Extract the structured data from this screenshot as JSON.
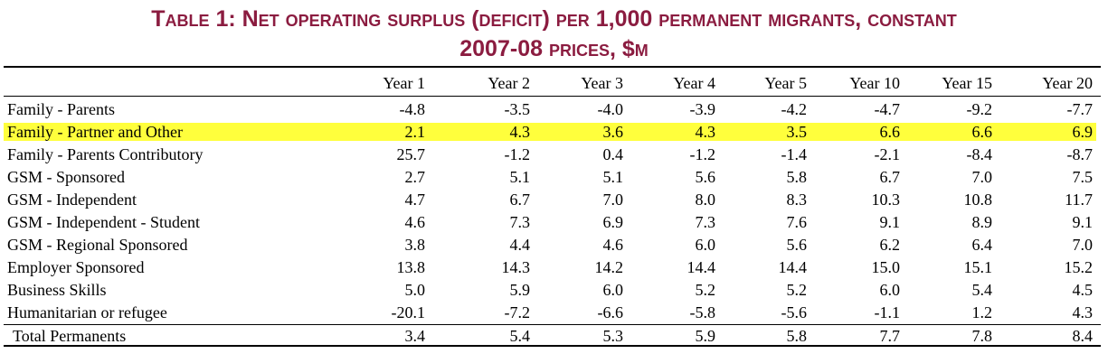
{
  "title": [
    "Table 1: Net operating surplus (deficit) per 1,000 permanent migrants, constant",
    "2007-08 prices, $m"
  ],
  "table": {
    "header": [
      "Year 1",
      "Year 2",
      "Year 3",
      "Year 4",
      "Year 5",
      "Year 10",
      "Year 15",
      "Year 20"
    ],
    "highlight_color": "#ffff3c",
    "rows": [
      {
        "label": "Family - Parents",
        "values": [
          "-4.8",
          "-3.5",
          "-4.0",
          "-3.9",
          "-4.2",
          "-4.7",
          "-9.2",
          "-7.7"
        ]
      },
      {
        "label": "Family - Partner and Other",
        "values": [
          "2.1",
          "4.3",
          "3.6",
          "4.3",
          "3.5",
          "6.6",
          "6.6",
          "6.9"
        ],
        "highlight": true
      },
      {
        "label": "Family - Parents Contributory",
        "values": [
          "25.7",
          "-1.2",
          "0.4",
          "-1.2",
          "-1.4",
          "-2.1",
          "-8.4",
          "-8.7"
        ]
      },
      {
        "label": "GSM - Sponsored",
        "values": [
          "2.7",
          "5.1",
          "5.1",
          "5.6",
          "5.8",
          "6.7",
          "7.0",
          "7.5"
        ]
      },
      {
        "label": "GSM - Independent",
        "values": [
          "4.7",
          "6.7",
          "7.0",
          "8.0",
          "8.3",
          "10.3",
          "10.8",
          "11.7"
        ]
      },
      {
        "label": "GSM - Independent - Student",
        "values": [
          "4.6",
          "7.3",
          "6.9",
          "7.3",
          "7.6",
          "9.1",
          "8.9",
          "9.1"
        ]
      },
      {
        "label": "GSM - Regional Sponsored",
        "values": [
          "3.8",
          "4.4",
          "4.6",
          "6.0",
          "5.6",
          "6.2",
          "6.4",
          "7.0"
        ]
      },
      {
        "label": "Employer Sponsored",
        "values": [
          "13.8",
          "14.3",
          "14.2",
          "14.4",
          "14.4",
          "15.0",
          "15.1",
          "15.2"
        ]
      },
      {
        "label": "Business Skills",
        "values": [
          "5.0",
          "5.9",
          "6.0",
          "5.2",
          "5.2",
          "6.0",
          "5.4",
          "4.5"
        ]
      },
      {
        "label": "Humanitarian or refugee",
        "values": [
          "-20.1",
          "-7.2",
          "-6.6",
          "-5.8",
          "-5.6",
          "-1.1",
          "1.2",
          "4.3"
        ]
      },
      {
        "label": "Total Permanents",
        "values": [
          "3.4",
          "5.4",
          "5.3",
          "5.9",
          "5.8",
          "7.7",
          "7.8",
          "8.4"
        ],
        "total": true
      }
    ]
  }
}
